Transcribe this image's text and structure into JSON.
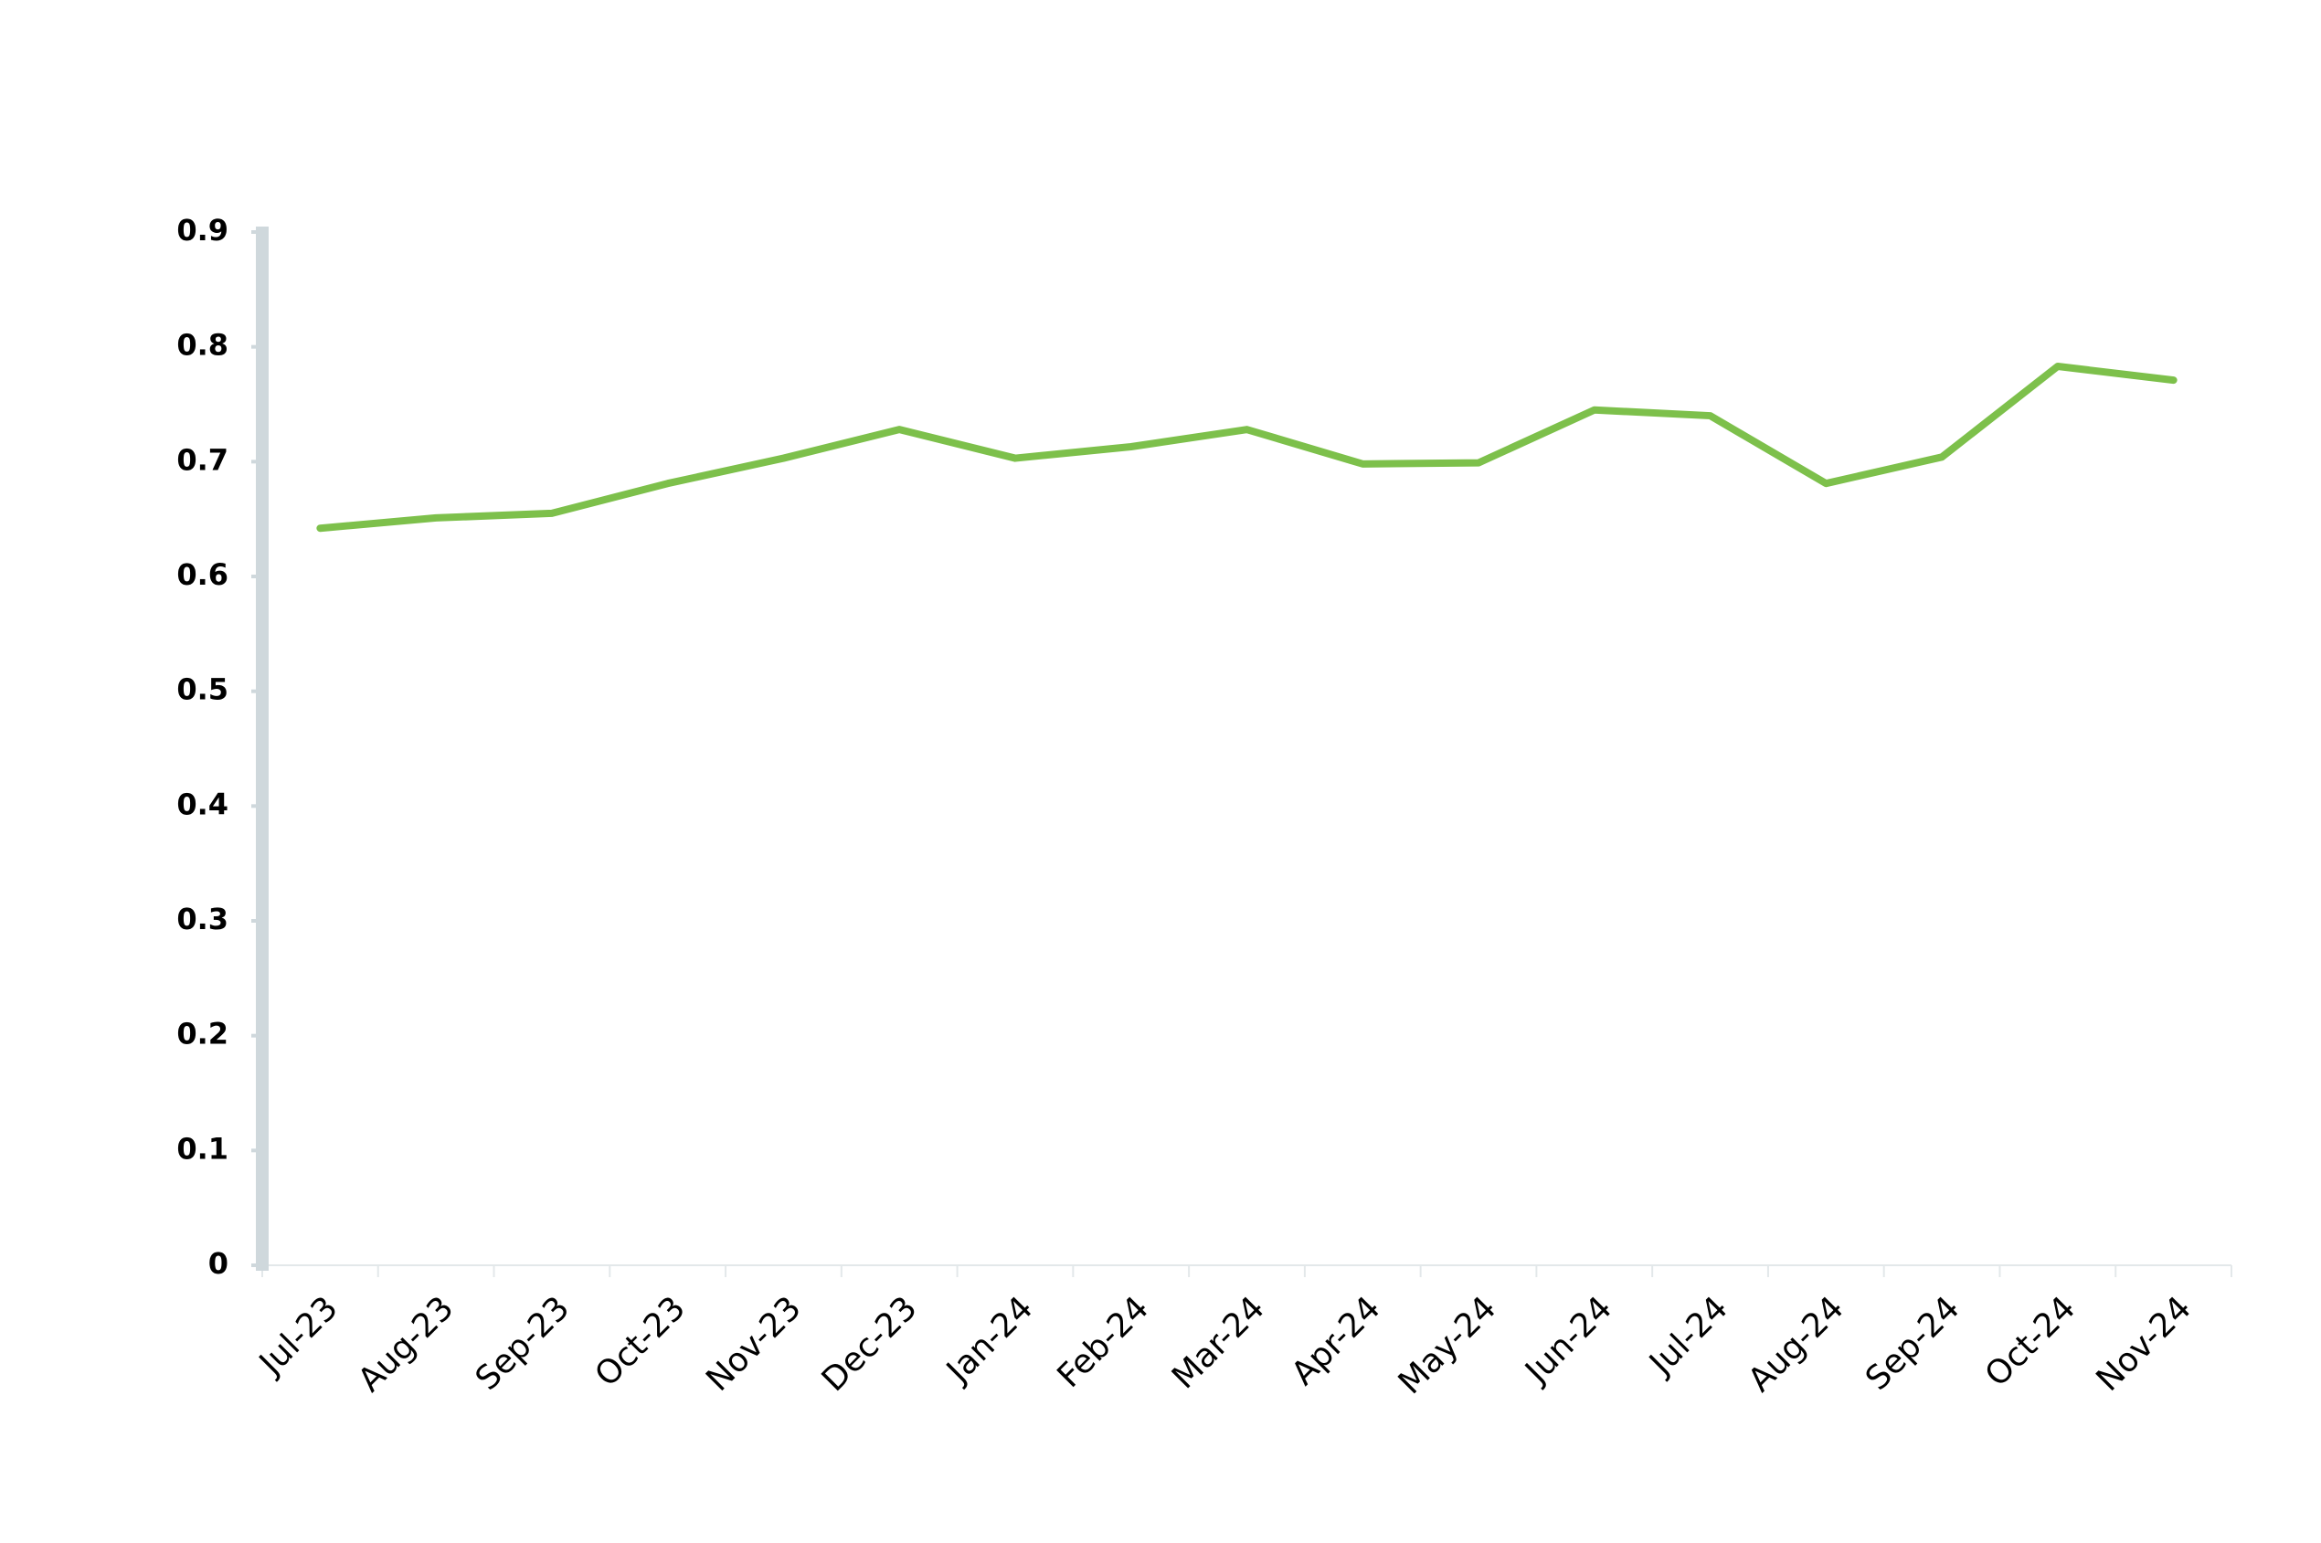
{
  "chart_data": {
    "type": "line",
    "categories": [
      "Jul-23",
      "Aug-23",
      "Sep-23",
      "Oct-23",
      "Nov-23",
      "Dec-23",
      "Jan-24",
      "Feb-24",
      "Mar-24",
      "Apr-24",
      "May-24",
      "Jun-24",
      "Jul-24",
      "Aug-24",
      "Sep-24",
      "Oct-24",
      "Nov-24"
    ],
    "series": [
      {
        "color": "#7dc04b",
        "values": [
          0.642,
          0.651,
          0.655,
          0.681,
          0.703,
          0.728,
          0.703,
          0.713,
          0.728,
          0.698,
          0.699,
          0.745,
          0.74,
          0.681,
          0.704,
          0.783,
          0.771
        ]
      }
    ],
    "ylim": [
      0,
      0.9
    ],
    "yticks": [
      0,
      0.1,
      0.2,
      0.3,
      0.4,
      0.5,
      0.6,
      0.7,
      0.8,
      0.9
    ],
    "grid": false
  }
}
